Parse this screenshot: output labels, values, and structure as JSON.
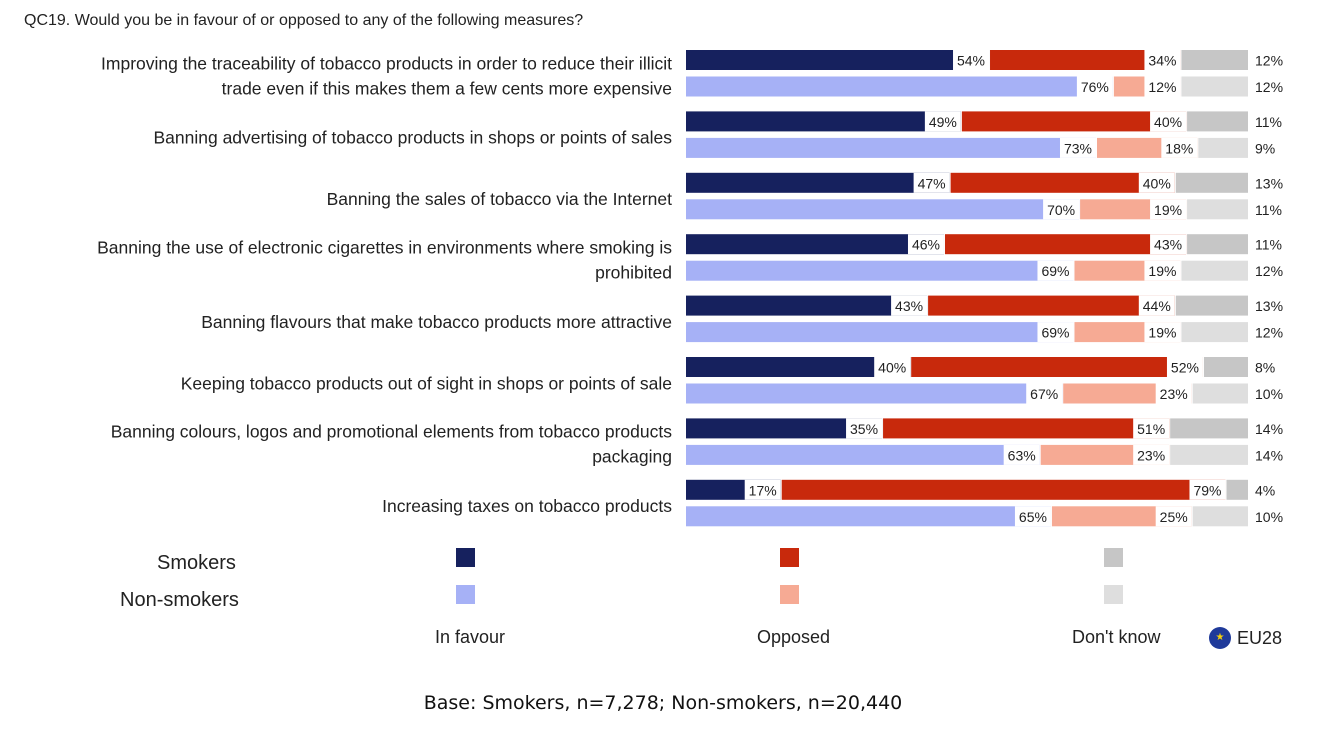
{
  "question": "QC19. Would you be in favour of or opposed to any of the following measures?",
  "base_note": "Base: Smokers, n=7,278; Non-smokers, n=20,440",
  "region_label": "EU28",
  "legend": {
    "rows": [
      "Smokers",
      "Non-smokers"
    ],
    "categories": [
      "In favour",
      "Opposed",
      "Don't know"
    ]
  },
  "colors": {
    "smokers": [
      "#16215e",
      "#c8290c",
      "#c6c6c6"
    ],
    "nonsmokers": [
      "#a6b1f6",
      "#f6aa94",
      "#dedede"
    ]
  },
  "chart_data": {
    "type": "bar",
    "orientation": "horizontal",
    "stacked": true,
    "categories": [
      "Improving the traceability of tobacco products in order to reduce their illicit trade even if this makes them a few cents more expensive",
      "Banning advertising of tobacco products in shops or points of sales",
      "Banning the sales of tobacco via the Internet",
      "Banning the use of electronic cigarettes in environments where smoking is prohibited",
      "Banning flavours that make tobacco products more attractive",
      "Keeping tobacco products out of sight in shops or points of sale",
      "Banning colours, logos and promotional elements from tobacco products packaging",
      "Increasing taxes on tobacco products"
    ],
    "category_lines": [
      [
        "Improving the traceability of tobacco products in order to reduce their illicit",
        "trade even if this makes them a few cents more expensive"
      ],
      [
        "Banning advertising of tobacco products in shops or points of sales"
      ],
      [
        "Banning the sales of tobacco via the Internet"
      ],
      [
        "Banning the use of electronic cigarettes in environments where smoking is",
        "prohibited"
      ],
      [
        "Banning flavours that make tobacco products more attractive"
      ],
      [
        "Keeping tobacco products out of sight in shops or points of sale"
      ],
      [
        "Banning colours, logos and promotional elements from tobacco products",
        "packaging"
      ],
      [
        "Increasing taxes on tobacco products"
      ]
    ],
    "groups": [
      "Smokers",
      "Non-smokers"
    ],
    "series": [
      "In favour",
      "Opposed",
      "Don't know"
    ],
    "values": {
      "Smokers": [
        [
          54,
          34,
          12
        ],
        [
          49,
          40,
          11
        ],
        [
          47,
          40,
          13
        ],
        [
          46,
          43,
          11
        ],
        [
          43,
          44,
          13
        ],
        [
          40,
          52,
          8
        ],
        [
          35,
          51,
          14
        ],
        [
          17,
          79,
          4
        ]
      ],
      "Non-smokers": [
        [
          76,
          12,
          12
        ],
        [
          73,
          18,
          9
        ],
        [
          70,
          19,
          11
        ],
        [
          69,
          19,
          12
        ],
        [
          69,
          19,
          12
        ],
        [
          67,
          23,
          10
        ],
        [
          63,
          23,
          14
        ],
        [
          65,
          25,
          10
        ]
      ]
    },
    "value_suffix": "%",
    "xlim": [
      0,
      100
    ]
  }
}
